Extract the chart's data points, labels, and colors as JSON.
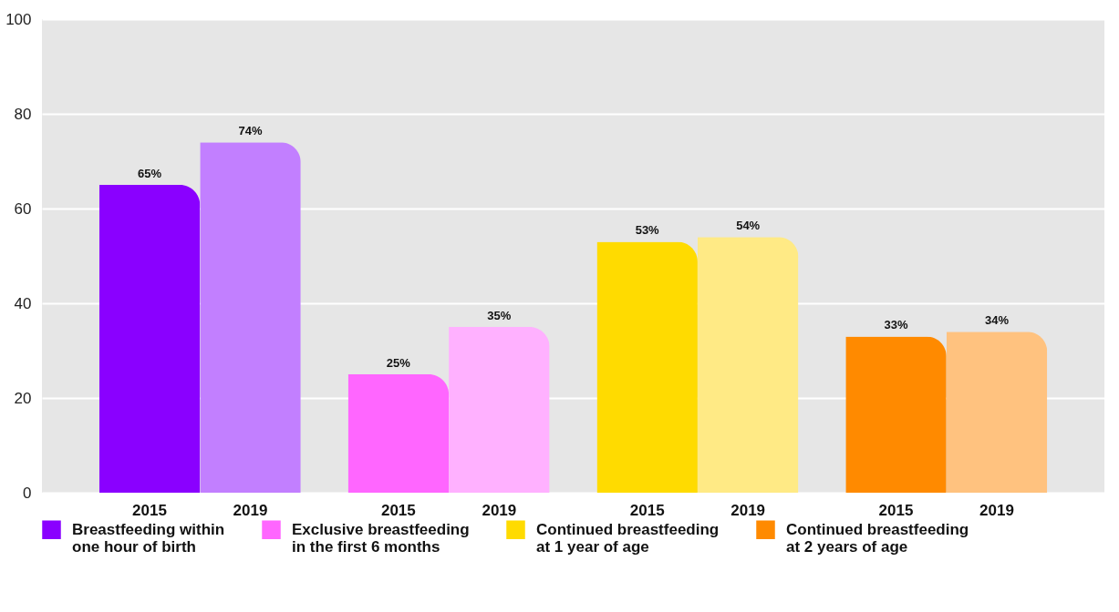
{
  "chart_data": {
    "type": "bar",
    "categories": [
      "2015",
      "2019",
      "2015",
      "2019",
      "2015",
      "2019",
      "2015",
      "2019"
    ],
    "series": [
      {
        "name": "Breastfeeding within one hour of birth",
        "color": "#8a00ff",
        "colors": [
          "#8a00ff",
          "#c27fff",
          null,
          null,
          null,
          null,
          null,
          null
        ],
        "values": [
          65,
          74,
          null,
          null,
          null,
          null,
          null,
          null
        ],
        "value_labels": [
          "65%",
          "74%",
          null,
          null,
          null,
          null,
          null,
          null
        ]
      },
      {
        "name": "Exclusive breastfeeding in the first 6 months",
        "color": "#ff66ff",
        "colors": [
          null,
          null,
          "#ff66ff",
          "#ffb1ff",
          null,
          null,
          null,
          null
        ],
        "values": [
          null,
          null,
          25,
          35,
          null,
          null,
          null,
          null
        ],
        "value_labels": [
          null,
          null,
          "25%",
          "35%",
          null,
          null,
          null,
          null
        ]
      },
      {
        "name": "Continued breastfeeding at 1 year of age",
        "color": "#ffdb00",
        "colors": [
          null,
          null,
          null,
          null,
          "#ffdb00",
          "#ffea85",
          null,
          null
        ],
        "values": [
          null,
          null,
          null,
          null,
          53,
          54,
          null,
          null
        ],
        "value_labels": [
          null,
          null,
          null,
          null,
          "53%",
          "54%",
          null,
          null
        ]
      },
      {
        "name": "Continued breastfeeding at 2 years of age",
        "color": "#ff8a00",
        "colors": [
          null,
          null,
          null,
          null,
          null,
          null,
          "#ff8a00",
          "#ffc27f"
        ],
        "values": [
          null,
          null,
          null,
          null,
          null,
          null,
          33,
          34
        ],
        "value_labels": [
          null,
          null,
          null,
          null,
          null,
          null,
          "33%",
          "34%"
        ]
      }
    ],
    "ylim": [
      0,
      100
    ],
    "yticks": [
      0,
      20,
      40,
      60,
      80,
      100
    ],
    "grid": "y",
    "legend": "bottom"
  }
}
